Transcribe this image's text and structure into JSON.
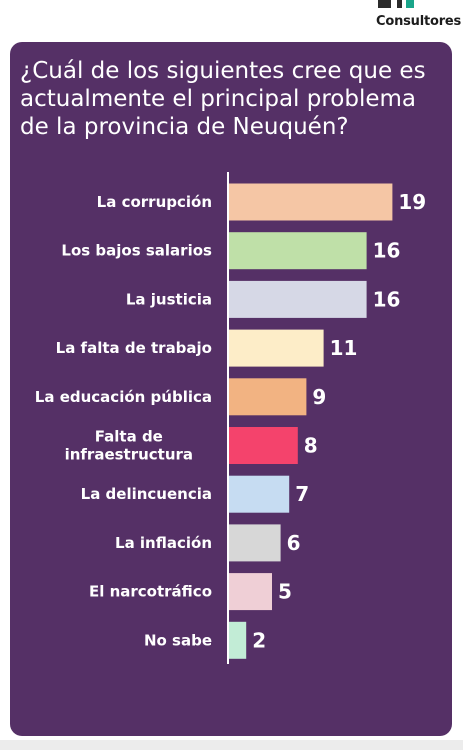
{
  "brand": {
    "name": "Consultores"
  },
  "chart_data": {
    "type": "bar",
    "orientation": "horizontal",
    "title": "¿Cuál de los siguientes cree que es actualmente el principal problema de la provincia de Neuquén?",
    "categories": [
      "La corrupción",
      "Los bajos salarios",
      "La justicia",
      "La falta de trabajo",
      "La educación pública",
      "Falta de infraestructura",
      "La delincuencia",
      "La inflación",
      "El narcotráfico",
      "No sabe"
    ],
    "category_lines": [
      [
        "La corrupción"
      ],
      [
        "Los bajos salarios"
      ],
      [
        "La justicia"
      ],
      [
        "La falta de trabajo"
      ],
      [
        "La educación pública"
      ],
      [
        "Falta de",
        "infraestructura"
      ],
      [
        "La delincuencia"
      ],
      [
        "La inflación"
      ],
      [
        "El narcotráfico"
      ],
      [
        "No sabe"
      ]
    ],
    "values": [
      19,
      16,
      16,
      11,
      9,
      8,
      7,
      6,
      5,
      2
    ],
    "colors": [
      "#f5c6a5",
      "#bfe0a8",
      "#d6d8e6",
      "#fdedc8",
      "#f2b382",
      "#f4436c",
      "#c6dcf2",
      "#d7d7d7",
      "#efcfd6",
      "#c2ecd6"
    ],
    "background": "#553066",
    "grid": false,
    "legend": false
  }
}
